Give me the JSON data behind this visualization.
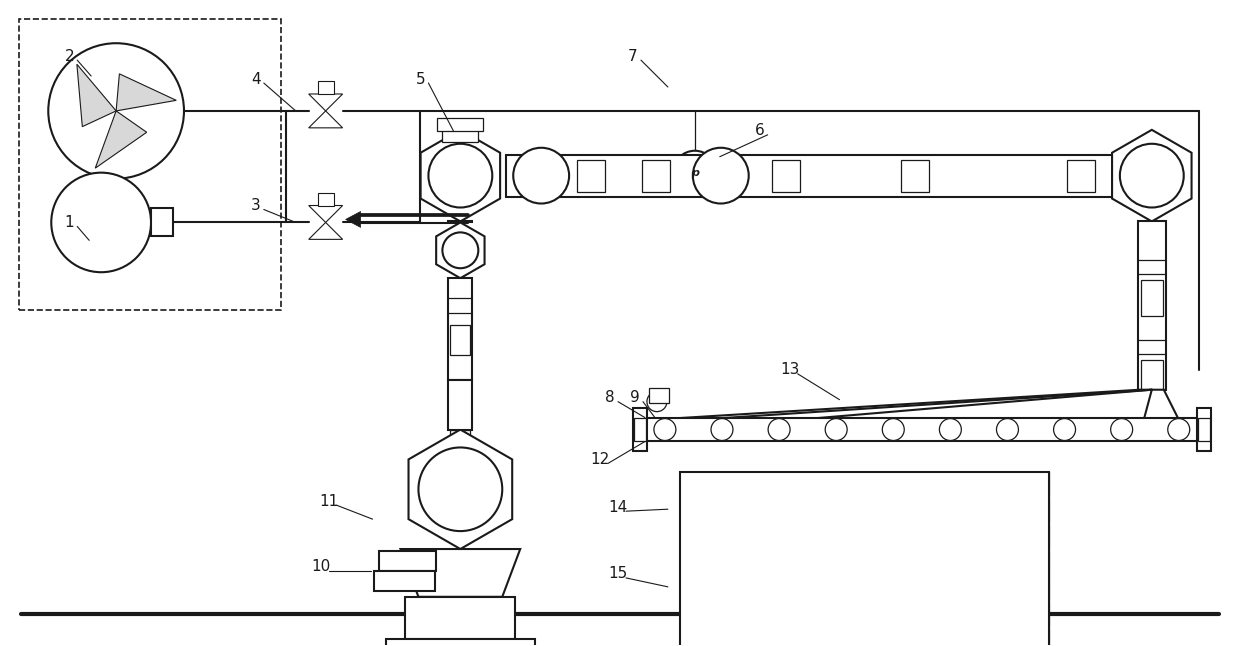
{
  "figsize": [
    12.4,
    6.46
  ],
  "dpi": 100,
  "bg": "#ffffff",
  "lc": "#1a1a1a",
  "lw": 1.5,
  "tlw": 0.9
}
